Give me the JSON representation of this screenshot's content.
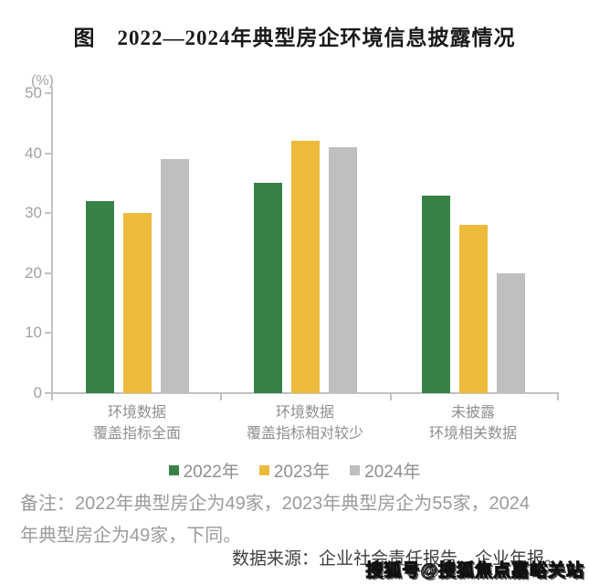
{
  "page": {
    "title": "图　2022—2024年典型房企环境信息披露情况"
  },
  "chart_data": {
    "type": "bar",
    "title": "图 2022—2024年典型房企环境信息披露情况",
    "ylabel": "(%)",
    "ylim": [
      0,
      50
    ],
    "yticks": [
      0,
      10,
      20,
      30,
      40,
      50
    ],
    "grid": false,
    "legend_position": "bottom",
    "categories": [
      [
        "环境数据",
        "覆盖指标全面"
      ],
      [
        "环境数据",
        "覆盖指标相对较少"
      ],
      [
        "未披露",
        "环境相关数据"
      ]
    ],
    "series": [
      {
        "name": "2022年",
        "color": "#398145",
        "values": [
          32,
          35,
          33
        ]
      },
      {
        "name": "2023年",
        "color": "#EEBA3C",
        "values": [
          30,
          42,
          28
        ]
      },
      {
        "name": "2024年",
        "color": "#BEBFC1",
        "values": [
          39,
          41,
          20
        ]
      }
    ]
  },
  "footer": {
    "note_lines": [
      "备注：2022年典型房企为49家，2023年典型房企为55家，2024",
      "年典型房企为49家，下同。"
    ],
    "source": "数据来源：企业社会责任报告、企业年报。",
    "watermark": "搜狐号@搜狐焦点嘉峪关站"
  },
  "colors": {
    "axis": "#c2c2c2",
    "tick_text": "#a2a2a2",
    "category_text": "#8f8f8f",
    "note_text": "#9b9b9b",
    "source_text": "#3f3f3f"
  }
}
